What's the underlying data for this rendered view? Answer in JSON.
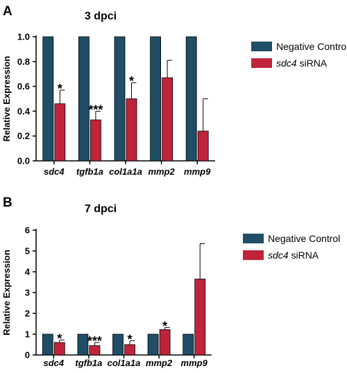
{
  "colors": {
    "control": "#1f4e66",
    "treatment": "#c0243a",
    "axis": "#000000"
  },
  "legend_items": [
    "Negative Control",
    "siRNA"
  ],
  "chart_data": [
    {
      "panel": "A",
      "type": "bar",
      "title": "3 dpci",
      "ylabel": "Relative Expression",
      "xlabel": "",
      "categories": [
        "sdc4",
        "tgfb1a",
        "col1a1a",
        "mmp2",
        "mmp9"
      ],
      "ylim": [
        0,
        1.0
      ],
      "yticks": [
        "0.0",
        "0.2",
        "0.4",
        "0.6",
        "0.8",
        "1.0"
      ],
      "ytick_values": [
        0,
        0.2,
        0.4,
        0.6,
        0.8,
        1.0
      ],
      "legend_placement": "right",
      "series": [
        {
          "name": "Negative Control",
          "values": [
            1.0,
            1.0,
            1.0,
            1.0,
            1.0
          ],
          "errors": [
            0,
            0,
            0,
            0,
            0
          ]
        },
        {
          "name": "sdc4 siRNA",
          "name_italic_part": "sdc4",
          "name_rest": " siRNA",
          "values": [
            0.46,
            0.33,
            0.5,
            0.67,
            0.24
          ],
          "errors": [
            0.11,
            0.07,
            0.13,
            0.14,
            0.26
          ]
        }
      ],
      "significance": [
        "*",
        "***",
        "*",
        "",
        ""
      ]
    },
    {
      "panel": "B",
      "type": "bar",
      "title": "7 dpci",
      "ylabel": "Relative Expression",
      "xlabel": "",
      "categories": [
        "sdc4",
        "tgfb1a",
        "col1a1a",
        "mmp2",
        "mmp9"
      ],
      "ylim": [
        0,
        6
      ],
      "yticks": [
        "0",
        "1",
        "2",
        "3",
        "4",
        "5",
        "6"
      ],
      "ytick_values": [
        0,
        1,
        2,
        3,
        4,
        5,
        6
      ],
      "legend_placement": "right",
      "series": [
        {
          "name": "Negative Control",
          "values": [
            1.0,
            1.0,
            1.0,
            1.0,
            1.0
          ],
          "errors": [
            0,
            0,
            0,
            0,
            0
          ]
        },
        {
          "name": "sdc4 siRNA",
          "name_italic_part": "sdc4",
          "name_rest": " siRNA",
          "values": [
            0.6,
            0.45,
            0.5,
            1.22,
            3.65
          ],
          "errors": [
            0.12,
            0.15,
            0.18,
            0.1,
            1.7
          ]
        }
      ],
      "significance": [
        "*",
        "***",
        "*",
        "*",
        ""
      ]
    }
  ]
}
